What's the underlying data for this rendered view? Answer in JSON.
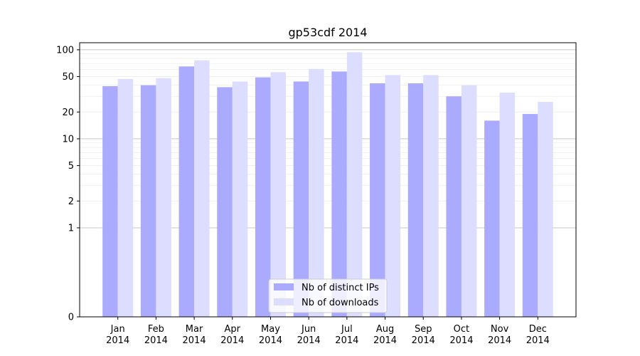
{
  "chart_data": {
    "type": "bar",
    "title": "gp53cdf 2014",
    "xlabel": "",
    "ylabel": "",
    "yscale": "symlog",
    "ylim": [
      0,
      120
    ],
    "yticks": [
      0,
      1,
      2,
      5,
      10,
      20,
      50,
      100
    ],
    "grid": "horizontal",
    "legend_position": "bottom-center",
    "categories": [
      [
        "Jan",
        "2014"
      ],
      [
        "Feb",
        "2014"
      ],
      [
        "Mar",
        "2014"
      ],
      [
        "Apr",
        "2014"
      ],
      [
        "May",
        "2014"
      ],
      [
        "Jun",
        "2014"
      ],
      [
        "Jul",
        "2014"
      ],
      [
        "Aug",
        "2014"
      ],
      [
        "Sep",
        "2014"
      ],
      [
        "Oct",
        "2014"
      ],
      [
        "Nov",
        "2014"
      ],
      [
        "Dec",
        "2014"
      ]
    ],
    "series": [
      {
        "name": "Nb of distinct IPs",
        "color": "#aaaaff",
        "values": [
          39,
          40,
          65,
          38,
          49,
          44,
          57,
          42,
          42,
          30,
          16,
          19
        ]
      },
      {
        "name": "Nb of downloads",
        "color": "#ddddff",
        "values": [
          47,
          48,
          76,
          44,
          56,
          61,
          94,
          52,
          52,
          40,
          33,
          26
        ]
      }
    ]
  }
}
